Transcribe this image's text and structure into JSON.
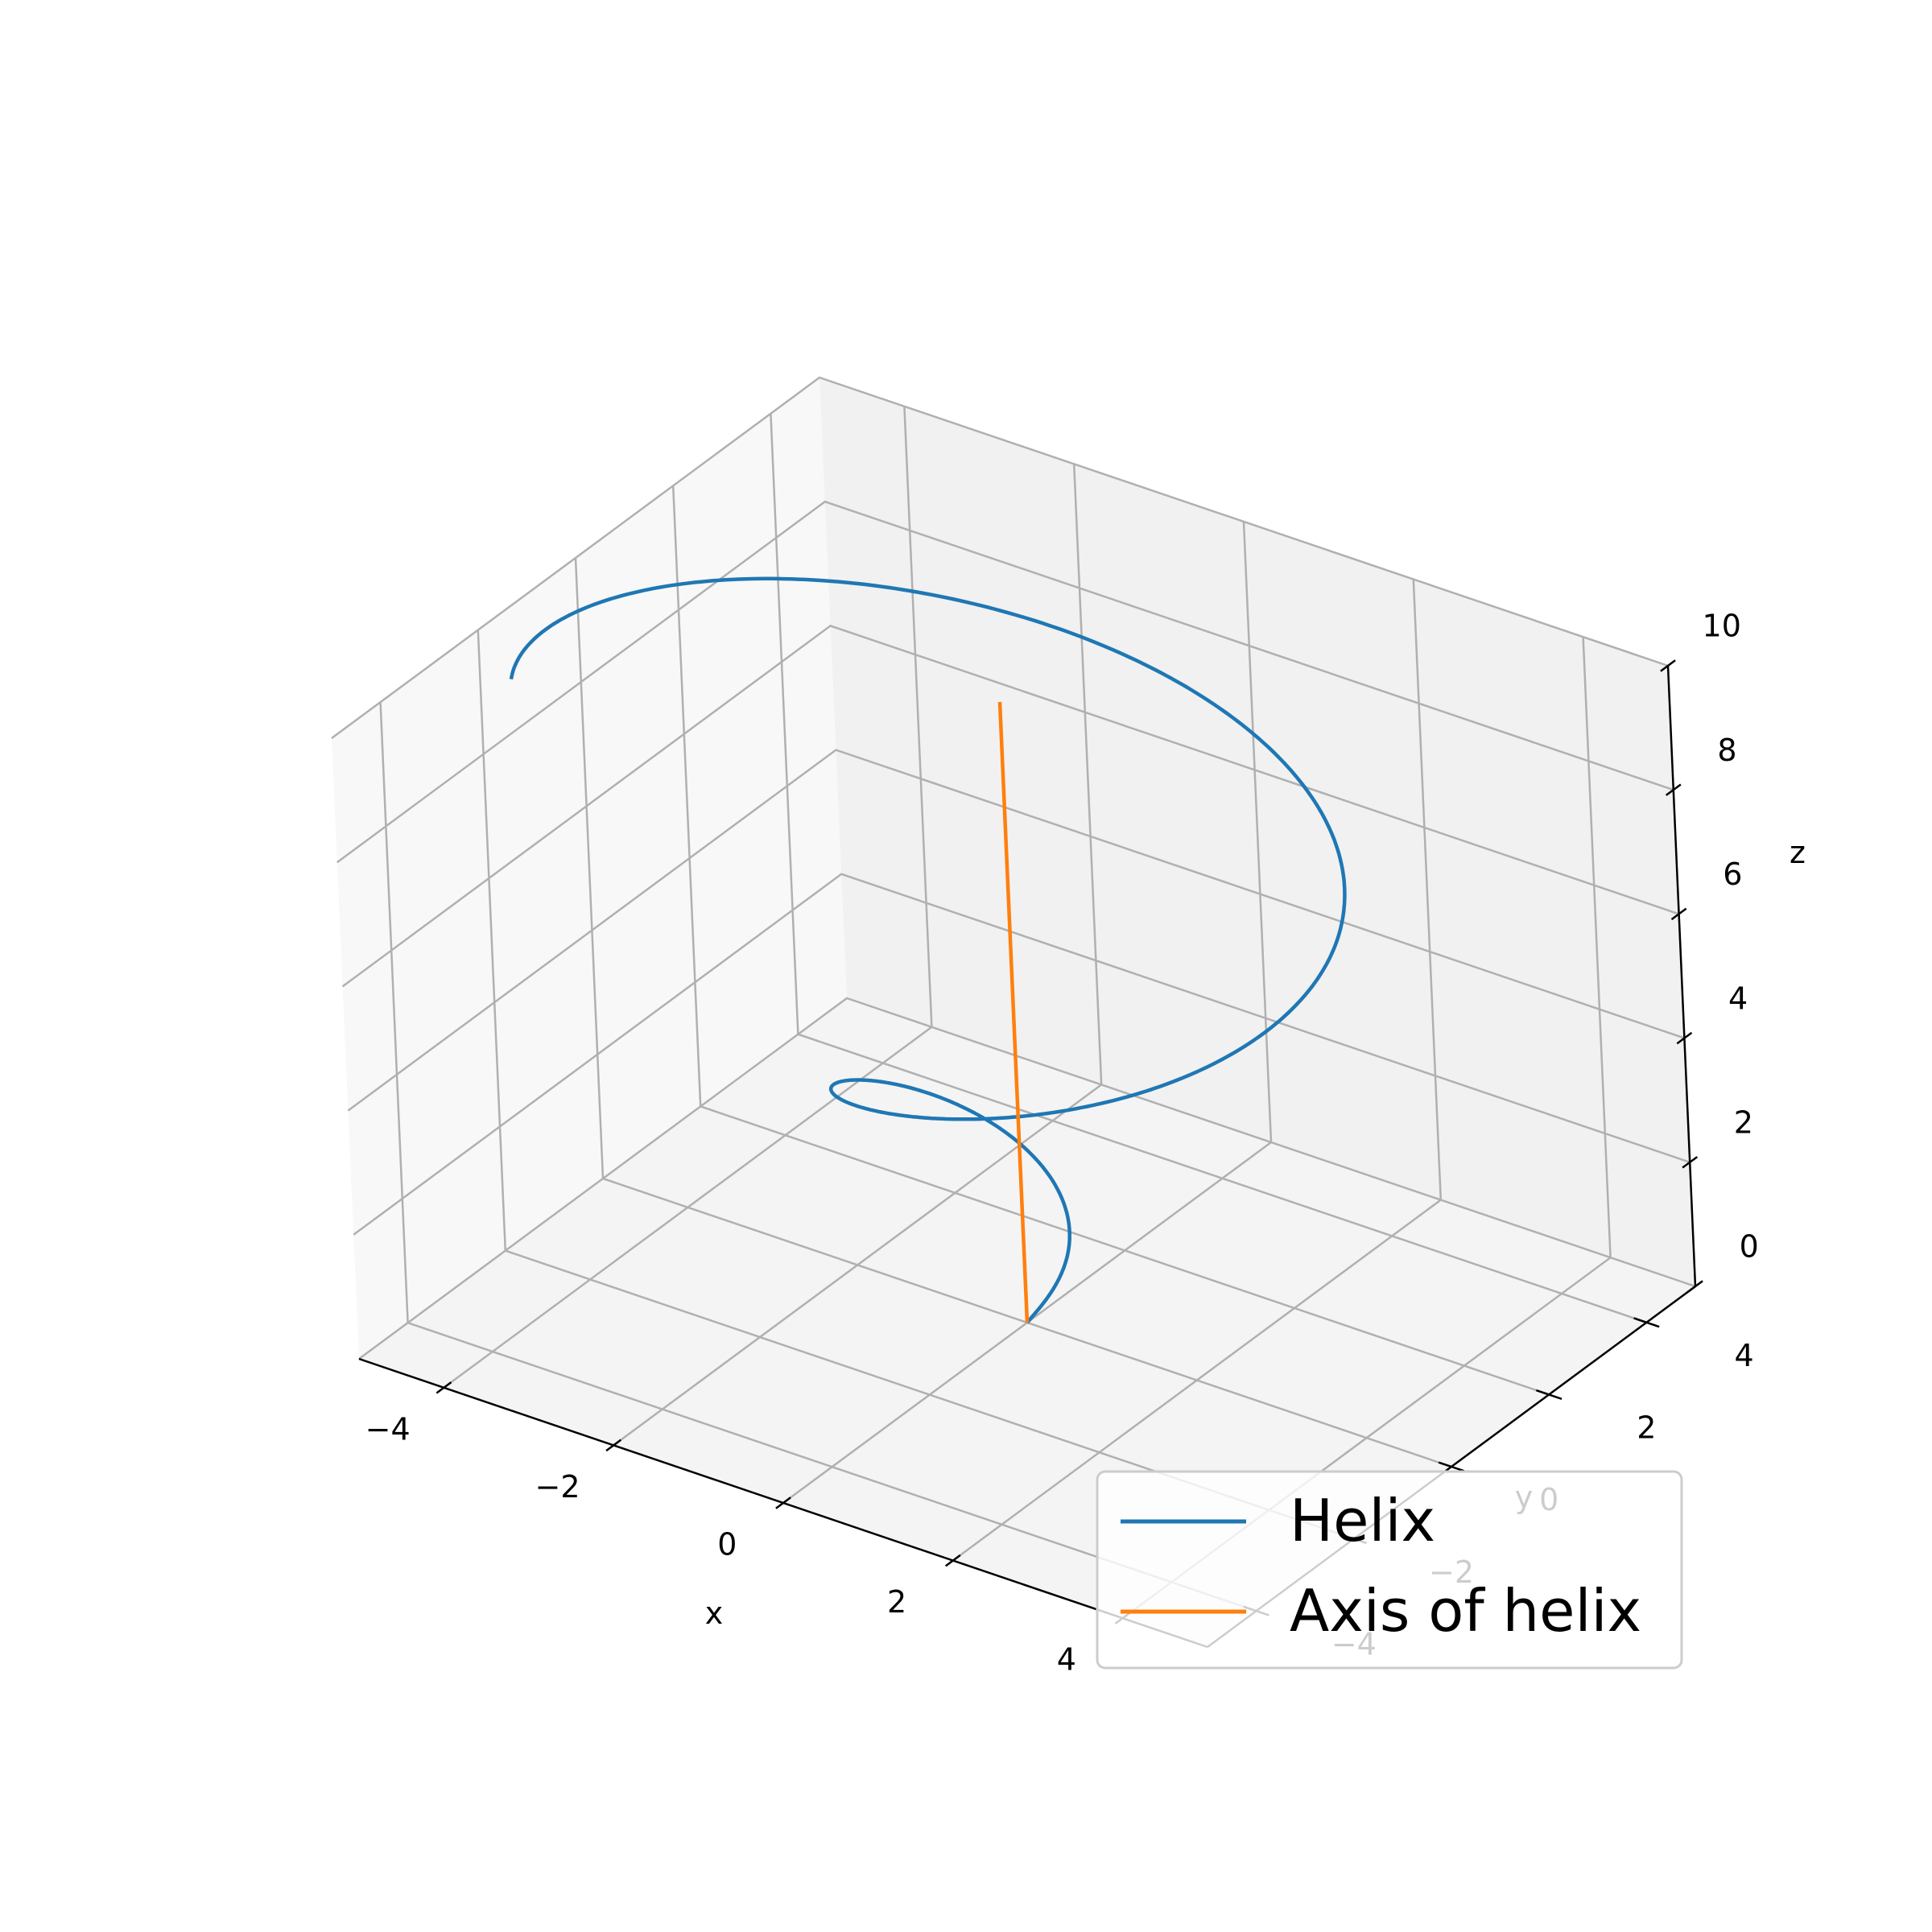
{
  "chart_data": {
    "type": "line3d",
    "title": "",
    "xlabel": "x",
    "ylabel": "y",
    "zlabel": "z",
    "xlim": [
      -5,
      5
    ],
    "ylim": [
      -5,
      5
    ],
    "zlim": [
      0,
      10
    ],
    "x_ticks": [
      -4,
      -2,
      0,
      2,
      4
    ],
    "y_ticks": [
      -4,
      -2,
      0,
      2,
      4
    ],
    "z_ticks": [
      0,
      2,
      4,
      6,
      8,
      10
    ],
    "x_tick_labels": [
      "−4",
      "−2",
      "0",
      "2",
      "4"
    ],
    "y_tick_labels": [
      "−4",
      "−2",
      "0",
      "2",
      "4"
    ],
    "z_tick_labels": [
      "0",
      "2",
      "4",
      "6",
      "8",
      "10"
    ],
    "grid": true,
    "legend_position": "lower-right",
    "series": [
      {
        "name": "Helix",
        "color": "#1f77b4",
        "equation": "x = (t/2)·cos(t), y = (t/2)·sin(t), z = t",
        "t_range": [
          0,
          10
        ]
      },
      {
        "name": "Axis of helix",
        "color": "#ff7f0e",
        "x": [
          0,
          0
        ],
        "y": [
          0,
          0
        ],
        "z": [
          0,
          10
        ]
      }
    ]
  }
}
